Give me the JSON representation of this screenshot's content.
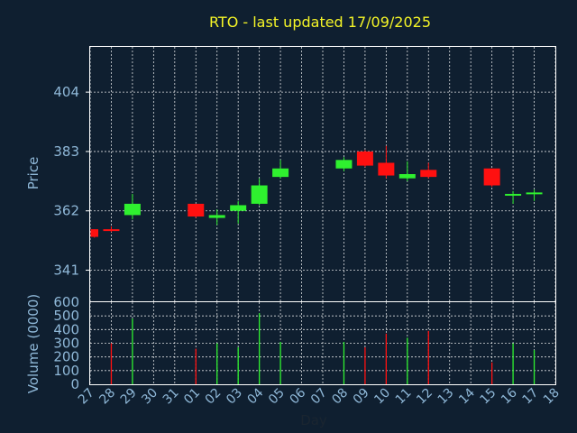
{
  "chart_data": {
    "type": "candlestick",
    "title": "RTO - last updated 17/09/2025",
    "xlabel": "Day",
    "price_ylabel": "Price",
    "volume_ylabel": "Volume (0000)",
    "x_tick_labels": [
      "27",
      "28",
      "29",
      "30",
      "31",
      "01",
      "02",
      "03",
      "04",
      "05",
      "06",
      "07",
      "08",
      "09",
      "10",
      "11",
      "12",
      "13",
      "14",
      "15",
      "16",
      "17",
      "18"
    ],
    "price_ticks": [
      "341",
      "362",
      "383",
      "404"
    ],
    "volume_ticks": [
      "0",
      "100",
      "200",
      "300",
      "400",
      "500",
      "600"
    ],
    "price_ylim": [
      330,
      420
    ],
    "volume_ylim": [
      0,
      600
    ],
    "up_color": "#2ff02f",
    "down_color": "#ff1010",
    "candles": [
      {
        "day": "27",
        "open": 355.5,
        "high": 355.5,
        "low": 352.5,
        "close": 352.8,
        "volume": 0
      },
      {
        "day": "28",
        "open": 355.5,
        "high": 356.5,
        "low": 354.5,
        "close": 355.0,
        "volume": 300
      },
      {
        "day": "29",
        "open": 360.5,
        "high": 368.0,
        "low": 359.0,
        "close": 364.5,
        "volume": 480
      },
      {
        "day": "01",
        "open": 364.5,
        "high": 364.5,
        "low": 359.5,
        "close": 360.0,
        "volume": 260
      },
      {
        "day": "02",
        "open": 359.5,
        "high": 362.5,
        "low": 357.0,
        "close": 360.5,
        "volume": 300
      },
      {
        "day": "03",
        "open": 362.0,
        "high": 365.5,
        "low": 357.5,
        "close": 364.0,
        "volume": 270
      },
      {
        "day": "04",
        "open": 364.5,
        "high": 373.5,
        "low": 364.0,
        "close": 371.0,
        "volume": 520
      },
      {
        "day": "05",
        "open": 374.0,
        "high": 380.0,
        "low": 373.5,
        "close": 377.0,
        "volume": 310
      },
      {
        "day": "08",
        "open": 377.0,
        "high": 381.0,
        "low": 376.0,
        "close": 380.0,
        "volume": 310
      },
      {
        "day": "09",
        "open": 383.0,
        "high": 383.5,
        "low": 377.5,
        "close": 378.0,
        "volume": 270
      },
      {
        "day": "10",
        "open": 379.0,
        "high": 385.0,
        "low": 373.5,
        "close": 374.5,
        "volume": 370
      },
      {
        "day": "11",
        "open": 373.5,
        "high": 379.5,
        "low": 372.5,
        "close": 375.0,
        "volume": 340
      },
      {
        "day": "12",
        "open": 376.5,
        "high": 379.0,
        "low": 373.5,
        "close": 374.0,
        "volume": 390
      },
      {
        "day": "15",
        "open": 377.0,
        "high": 377.0,
        "low": 370.5,
        "close": 371.0,
        "volume": 160
      },
      {
        "day": "16",
        "open": 367.5,
        "high": 369.0,
        "low": 364.5,
        "close": 368.0,
        "volume": 300
      },
      {
        "day": "17",
        "open": 368.0,
        "high": 369.5,
        "low": 365.5,
        "close": 368.5,
        "volume": 250
      }
    ]
  }
}
